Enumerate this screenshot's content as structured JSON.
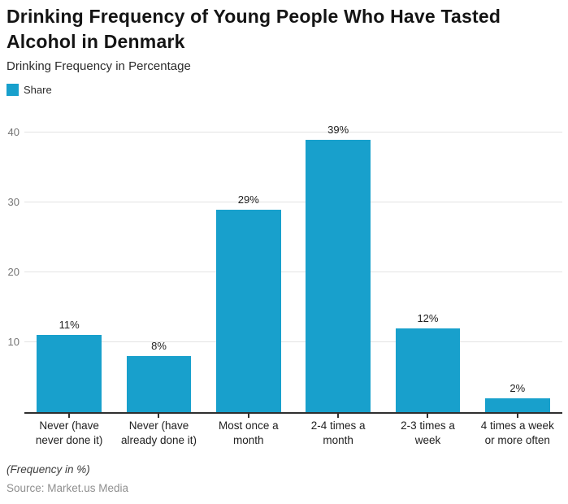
{
  "header": {
    "title": "Drinking Frequency of Young People Who Have Tasted Alcohol in Denmark",
    "subtitle": "Drinking Frequency in Percentage"
  },
  "legend": {
    "label": "Share",
    "swatch_color": "#18a0cc"
  },
  "chart_data": {
    "type": "bar",
    "title": "Drinking Frequency of Young People Who Have Tasted Alcohol in Denmark",
    "subtitle": "Drinking Frequency in Percentage",
    "categories": [
      "Never (have never done it)",
      "Never (have already done it)",
      "Most once a month",
      "2-4 times a month",
      "2-3 times a week",
      "4 times a week or more often"
    ],
    "series": [
      {
        "name": "Share",
        "values": [
          11,
          8,
          29,
          39,
          12,
          2
        ]
      }
    ],
    "value_labels": [
      "11%",
      "8%",
      "29%",
      "39%",
      "12%",
      "2%"
    ],
    "xlabel": "",
    "ylabel": "",
    "ylim": [
      0,
      42.7
    ],
    "yticks": [
      10,
      20,
      30,
      40
    ],
    "grid": true,
    "grid_color": "#e3e3e3",
    "bar_color": "#18a0cc",
    "legend_position": "top-left"
  },
  "footer": {
    "note": "(Frequency in %)",
    "source": "Source: Market.us Media"
  }
}
